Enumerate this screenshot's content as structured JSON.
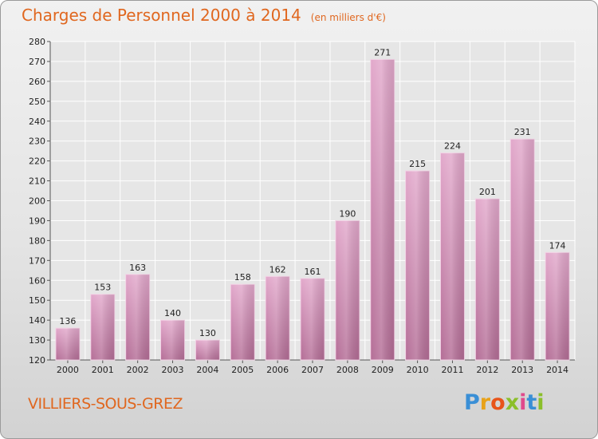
{
  "header": {
    "title": "Charges de Personnel 2000 à 2014",
    "subtitle": "(en milliers d'€)"
  },
  "footer": {
    "location": "VILLIERS-SOUS-GREZ",
    "logo_letters": [
      "P",
      "r",
      "o",
      "x",
      "i",
      "t",
      "i"
    ],
    "logo_colors": [
      "#3a8fd6",
      "#e8a21a",
      "#e8541a",
      "#8bbf2a",
      "#e04a8c",
      "#3a8fd6",
      "#8bbf2a"
    ]
  },
  "chart_data": {
    "type": "bar",
    "categories": [
      "2000",
      "2001",
      "2002",
      "2003",
      "2004",
      "2005",
      "2006",
      "2007",
      "2008",
      "2009",
      "2010",
      "2011",
      "2012",
      "2013",
      "2014"
    ],
    "values": [
      136,
      153,
      163,
      140,
      130,
      158,
      162,
      161,
      190,
      271,
      215,
      224,
      201,
      231,
      174
    ],
    "title": "Charges de Personnel 2000 à 2014",
    "subtitle": "(en milliers d'€)",
    "xlabel": "",
    "ylabel": "",
    "ylim": [
      120,
      280
    ],
    "yticks": [
      120,
      130,
      140,
      150,
      160,
      170,
      180,
      190,
      200,
      210,
      220,
      230,
      240,
      250,
      260,
      270,
      280
    ],
    "grid": true,
    "bar_color": "#d98ab8",
    "grid_color": "#ffffff"
  }
}
